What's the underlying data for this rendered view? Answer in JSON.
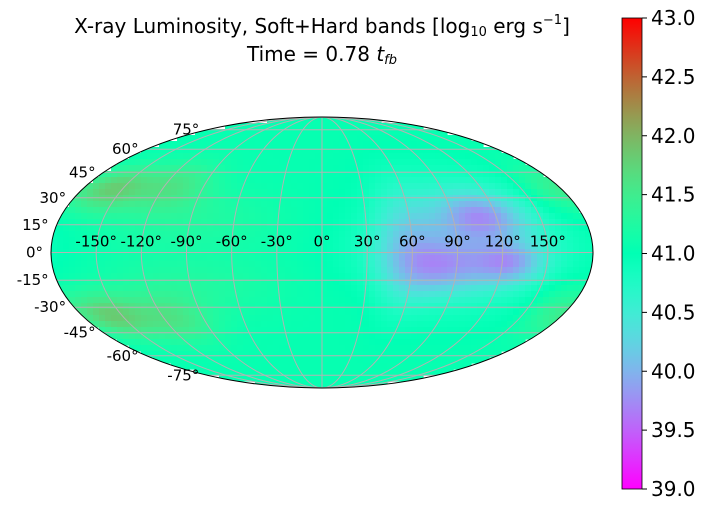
{
  "chart_data": {
    "type": "heatmap",
    "projection": "mollweide",
    "title": {
      "line1_prefix": "X-ray Luminosity, Soft+Hard bands [log",
      "line1_sub": "10",
      "line1_mid": "  erg s",
      "line1_sup": "−1",
      "line1_suffix": "]",
      "line2_prefix": "Time = 0.78 ",
      "line2_var": "t",
      "line2_sub": "fb"
    },
    "longitude_ticks": [
      -150,
      -120,
      -90,
      -60,
      -30,
      0,
      30,
      60,
      90,
      120,
      150
    ],
    "longitude_labels": [
      "-150°",
      "-120°",
      "-90°",
      "-60°",
      "-30°",
      "0°",
      "30°",
      "60°",
      "90°",
      "120°",
      "150°"
    ],
    "latitude_ticks": [
      75,
      60,
      45,
      30,
      15,
      0,
      -15,
      -30,
      -45,
      -60,
      -75
    ],
    "latitude_labels": [
      "75°",
      "60°",
      "45°",
      "30°",
      "15°",
      "0°",
      "-15°",
      "-30°",
      "-45°",
      "-60°",
      "-75°"
    ],
    "grid": true,
    "colorbar": {
      "min": 39.0,
      "max": 43.0,
      "ticks": [
        39.0,
        39.5,
        40.0,
        40.5,
        41.0,
        41.5,
        42.0,
        42.5,
        43.0
      ],
      "tick_labels": [
        "39.0",
        "39.5",
        "40.0",
        "40.5",
        "41.0",
        "41.5",
        "42.0",
        "42.5",
        "43.0"
      ],
      "colormap": "rainbow",
      "placement": "right"
    },
    "field": {
      "background": 41.05,
      "features": [
        {
          "lon": -160,
          "lat": 35,
          "sigma_lon": 18,
          "sigma_lat": 9,
          "value": 41.75
        },
        {
          "lon": -115,
          "lat": 37,
          "sigma_lon": 22,
          "sigma_lat": 10,
          "value": 41.55
        },
        {
          "lon": -160,
          "lat": -35,
          "sigma_lon": 18,
          "sigma_lat": 9,
          "value": 41.75
        },
        {
          "lon": -115,
          "lat": -37,
          "sigma_lon": 22,
          "sigma_lat": 10,
          "value": 41.55
        },
        {
          "lon": -90,
          "lat": 18,
          "sigma_lon": 45,
          "sigma_lat": 12,
          "value": 41.25
        },
        {
          "lon": -90,
          "lat": -18,
          "sigma_lon": 45,
          "sigma_lat": 12,
          "value": 41.25
        },
        {
          "lon": 30,
          "lat": 25,
          "sigma_lon": 15,
          "sigma_lat": 12,
          "value": 41.1
        },
        {
          "lon": 30,
          "lat": -25,
          "sigma_lon": 15,
          "sigma_lat": 12,
          "value": 41.1
        },
        {
          "lon": 95,
          "lat": 6,
          "sigma_lon": 45,
          "sigma_lat": 24,
          "value": 40.35
        },
        {
          "lon": 110,
          "lat": 20,
          "sigma_lon": 20,
          "sigma_lat": 9,
          "value": 40.3
        },
        {
          "lon": 80,
          "lat": -8,
          "sigma_lon": 20,
          "sigma_lat": 10,
          "value": 40.4
        },
        {
          "lon": 125,
          "lat": -6,
          "sigma_lon": 16,
          "sigma_lat": 8,
          "value": 40.3
        },
        {
          "lon": 55,
          "lat": 2,
          "sigma_lon": 15,
          "sigma_lat": 22,
          "value": 40.6
        },
        {
          "lon": 165,
          "lat": 35,
          "sigma_lon": 12,
          "sigma_lat": 10,
          "value": 41.3
        },
        {
          "lon": 165,
          "lat": -30,
          "sigma_lon": 12,
          "sigma_lat": 10,
          "value": 41.3
        }
      ]
    }
  }
}
